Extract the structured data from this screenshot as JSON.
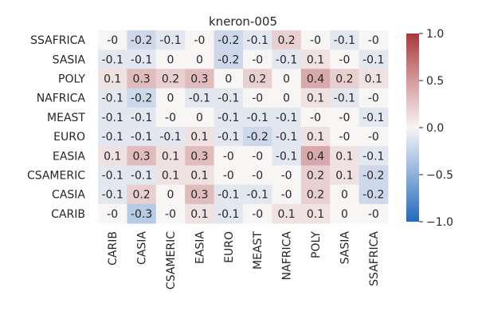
{
  "chart_data": {
    "type": "heatmap",
    "title": "kneron-005",
    "xlabel": "",
    "ylabel": "",
    "x_categories": [
      "CARIB",
      "CASIA",
      "CSAMERIC",
      "EASIA",
      "EURO",
      "MEAST",
      "NAFRICA",
      "POLY",
      "SASIA",
      "SSAFRICA"
    ],
    "y_categories": [
      "SSAFRICA",
      "SASIA",
      "POLY",
      "NAFRICA",
      "MEAST",
      "EURO",
      "EASIA",
      "CSAMERIC",
      "CASIA",
      "CARIB"
    ],
    "values": [
      [
        0,
        -0.2,
        -0.1,
        0,
        -0.2,
        -0.1,
        0.2,
        0,
        -0.1,
        0
      ],
      [
        -0.1,
        -0.1,
        0,
        0,
        -0.2,
        0,
        -0.1,
        0.1,
        0,
        -0.1
      ],
      [
        0.1,
        0.3,
        0.2,
        0.3,
        0,
        0.2,
        0,
        0.4,
        0.2,
        0.1
      ],
      [
        -0.1,
        -0.2,
        0,
        -0.1,
        -0.1,
        0,
        0,
        0.1,
        -0.1,
        0
      ],
      [
        -0.1,
        -0.1,
        0,
        0,
        -0.1,
        -0.1,
        -0.1,
        0,
        0,
        -0.1
      ],
      [
        -0.1,
        -0.1,
        -0.1,
        0.1,
        -0.1,
        -0.2,
        -0.1,
        0.1,
        0,
        0
      ],
      [
        0.1,
        0.3,
        0.1,
        0.3,
        0,
        0,
        -0.1,
        0.4,
        0.1,
        -0.1
      ],
      [
        -0.1,
        -0.1,
        0.1,
        0.1,
        0,
        0,
        0,
        0.2,
        0.1,
        -0.2
      ],
      [
        -0.1,
        0.2,
        0,
        0.3,
        -0.1,
        -0.1,
        0,
        0.2,
        0,
        -0.2
      ],
      [
        0,
        -0.3,
        0,
        0.1,
        -0.1,
        0,
        0.1,
        0.1,
        0,
        0
      ]
    ],
    "labels": [
      [
        "-0",
        "-0.2",
        "-0.1",
        "-0",
        "-0.2",
        "-0.1",
        "0.2",
        "-0",
        "-0.1",
        "-0"
      ],
      [
        "-0.1",
        "-0.1",
        "0",
        "0",
        "-0.2",
        "-0",
        "-0.1",
        "0.1",
        "-0",
        "-0.1"
      ],
      [
        "0.1",
        "0.3",
        "0.2",
        "0.3",
        "0",
        "0.2",
        "0",
        "0.4",
        "0.2",
        "0.1"
      ],
      [
        "-0.1",
        "-0.2",
        "0",
        "-0.1",
        "-0.1",
        "-0",
        "0",
        "0.1",
        "-0.1",
        "-0"
      ],
      [
        "-0.1",
        "-0.1",
        "-0",
        "0",
        "-0.1",
        "-0.1",
        "-0.1",
        "-0",
        "-0",
        "-0.1"
      ],
      [
        "-0.1",
        "-0.1",
        "-0.1",
        "0.1",
        "-0.1",
        "-0.2",
        "-0.1",
        "0.1",
        "-0",
        "-0"
      ],
      [
        "0.1",
        "0.3",
        "0.1",
        "0.3",
        "-0",
        "-0",
        "-0.1",
        "0.4",
        "0.1",
        "-0.1"
      ],
      [
        "-0.1",
        "-0.1",
        "0.1",
        "0.1",
        "-0",
        "-0",
        "-0",
        "0.2",
        "0.1",
        "-0.2"
      ],
      [
        "-0.1",
        "0.2",
        "0",
        "0.3",
        "-0.1",
        "-0.1",
        "-0",
        "0.2",
        "0",
        "-0.2"
      ],
      [
        "-0",
        "-0.3",
        "-0",
        "0.1",
        "-0.1",
        "-0",
        "0.1",
        "0.1",
        "0",
        "-0"
      ]
    ],
    "colormap": "vlag",
    "colorbar": {
      "vmin": -1.0,
      "vmax": 1.0,
      "ticks": [
        1.0,
        0.5,
        0.0,
        -0.5,
        -1.0
      ],
      "tick_labels": [
        "1.0",
        "0.5",
        "0.0",
        "−0.5",
        "−1.0"
      ]
    },
    "colors": {
      "low": "#2369bd",
      "mid": "#f8f5f5",
      "high": "#a9373b"
    },
    "grid": false,
    "legend": "colorbar-right"
  }
}
